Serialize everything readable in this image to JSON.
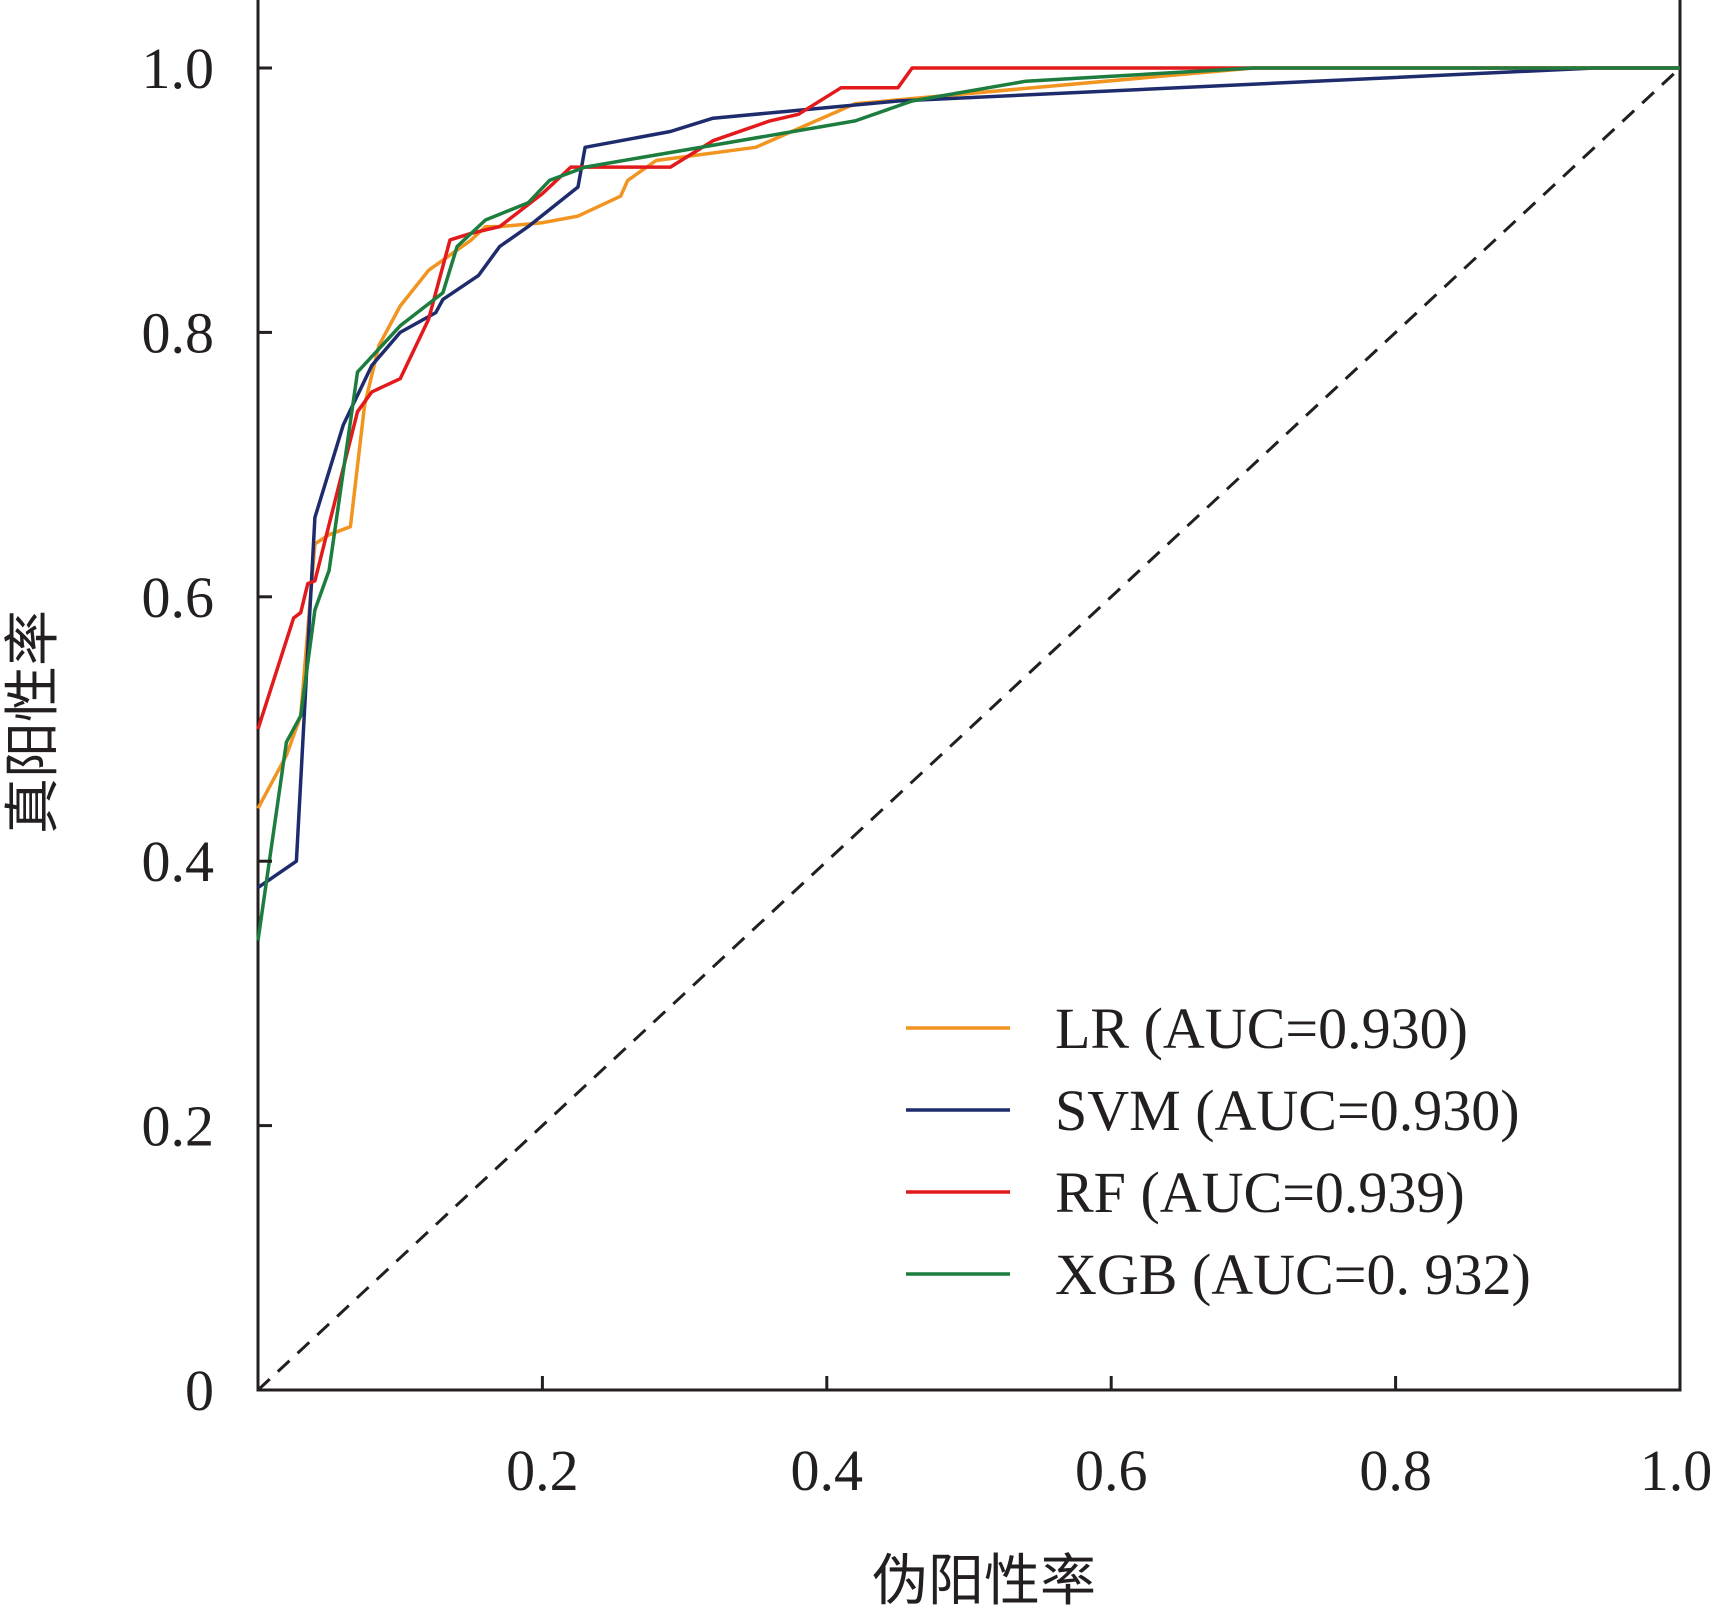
{
  "chart_data": {
    "type": "line",
    "xlabel": "伪阳性率",
    "ylabel": "真阳性率",
    "xlim": [
      0,
      1
    ],
    "ylim": [
      0,
      1
    ],
    "x_ticks": [
      {
        "value": 0.2,
        "label": "0.2"
      },
      {
        "value": 0.4,
        "label": "0.4"
      },
      {
        "value": 0.6,
        "label": "0.6"
      },
      {
        "value": 0.8,
        "label": "0.8"
      },
      {
        "value": 1.0,
        "label": "1.0"
      }
    ],
    "y_ticks": [
      {
        "value": 0,
        "label": "0"
      },
      {
        "value": 0.2,
        "label": "0.2"
      },
      {
        "value": 0.4,
        "label": "0.4"
      },
      {
        "value": 0.6,
        "label": "0.6"
      },
      {
        "value": 0.8,
        "label": "0.8"
      },
      {
        "value": 1.0,
        "label": "1.0"
      }
    ],
    "grid": false,
    "legend_position": "bottom-right",
    "reference_line": {
      "x": [
        0,
        1
      ],
      "y": [
        0,
        1
      ],
      "style": "dashed",
      "color": "#231f20"
    },
    "series": [
      {
        "name": "LR (AUC=0.930)",
        "color": "#f29420",
        "x": [
          0,
          0.02,
          0.03,
          0.04,
          0.05,
          0.065,
          0.075,
          0.085,
          0.1,
          0.12,
          0.15,
          0.16,
          0.17,
          0.2,
          0.225,
          0.255,
          0.26,
          0.28,
          0.35,
          0.42,
          0.7,
          0.94,
          1
        ],
        "y": [
          0.44,
          0.48,
          0.51,
          0.64,
          0.647,
          0.653,
          0.745,
          0.79,
          0.82,
          0.847,
          0.87,
          0.88,
          0.88,
          0.883,
          0.888,
          0.903,
          0.915,
          0.93,
          0.94,
          0.973,
          1.0,
          1.0,
          1.0
        ]
      },
      {
        "name": "SVM (AUC=0.930)",
        "color": "#1e2c6e",
        "x": [
          0,
          0.027,
          0.04,
          0.06,
          0.08,
          0.1,
          0.125,
          0.13,
          0.155,
          0.17,
          0.19,
          0.225,
          0.23,
          0.29,
          0.32,
          0.37,
          0.45,
          0.94,
          1
        ],
        "y": [
          0.38,
          0.4,
          0.66,
          0.73,
          0.775,
          0.8,
          0.815,
          0.825,
          0.843,
          0.865,
          0.88,
          0.91,
          0.94,
          0.952,
          0.962,
          0.967,
          0.975,
          1.0,
          1.0
        ]
      },
      {
        "name": "RF (AUC=0.939)",
        "color": "#e31a1c",
        "x": [
          0,
          0.025,
          0.03,
          0.035,
          0.04,
          0.07,
          0.08,
          0.1,
          0.12,
          0.135,
          0.15,
          0.17,
          0.2,
          0.22,
          0.29,
          0.32,
          0.36,
          0.38,
          0.41,
          0.45,
          0.46,
          1
        ],
        "y": [
          0.5,
          0.584,
          0.588,
          0.61,
          0.612,
          0.74,
          0.755,
          0.765,
          0.81,
          0.87,
          0.875,
          0.88,
          0.905,
          0.925,
          0.925,
          0.945,
          0.96,
          0.965,
          0.985,
          0.985,
          1.0,
          1.0
        ]
      },
      {
        "name": "XGB (AUC=0. 932)",
        "color": "#1c7d3e",
        "x": [
          0,
          0.02,
          0.03,
          0.04,
          0.05,
          0.07,
          0.1,
          0.13,
          0.14,
          0.16,
          0.19,
          0.205,
          0.23,
          0.42,
          0.46,
          0.54,
          0.7,
          0.95,
          1
        ],
        "y": [
          0.34,
          0.49,
          0.51,
          0.59,
          0.62,
          0.77,
          0.805,
          0.83,
          0.865,
          0.885,
          0.898,
          0.915,
          0.925,
          0.96,
          0.975,
          0.99,
          1.0,
          1.0,
          1.0
        ]
      }
    ]
  }
}
